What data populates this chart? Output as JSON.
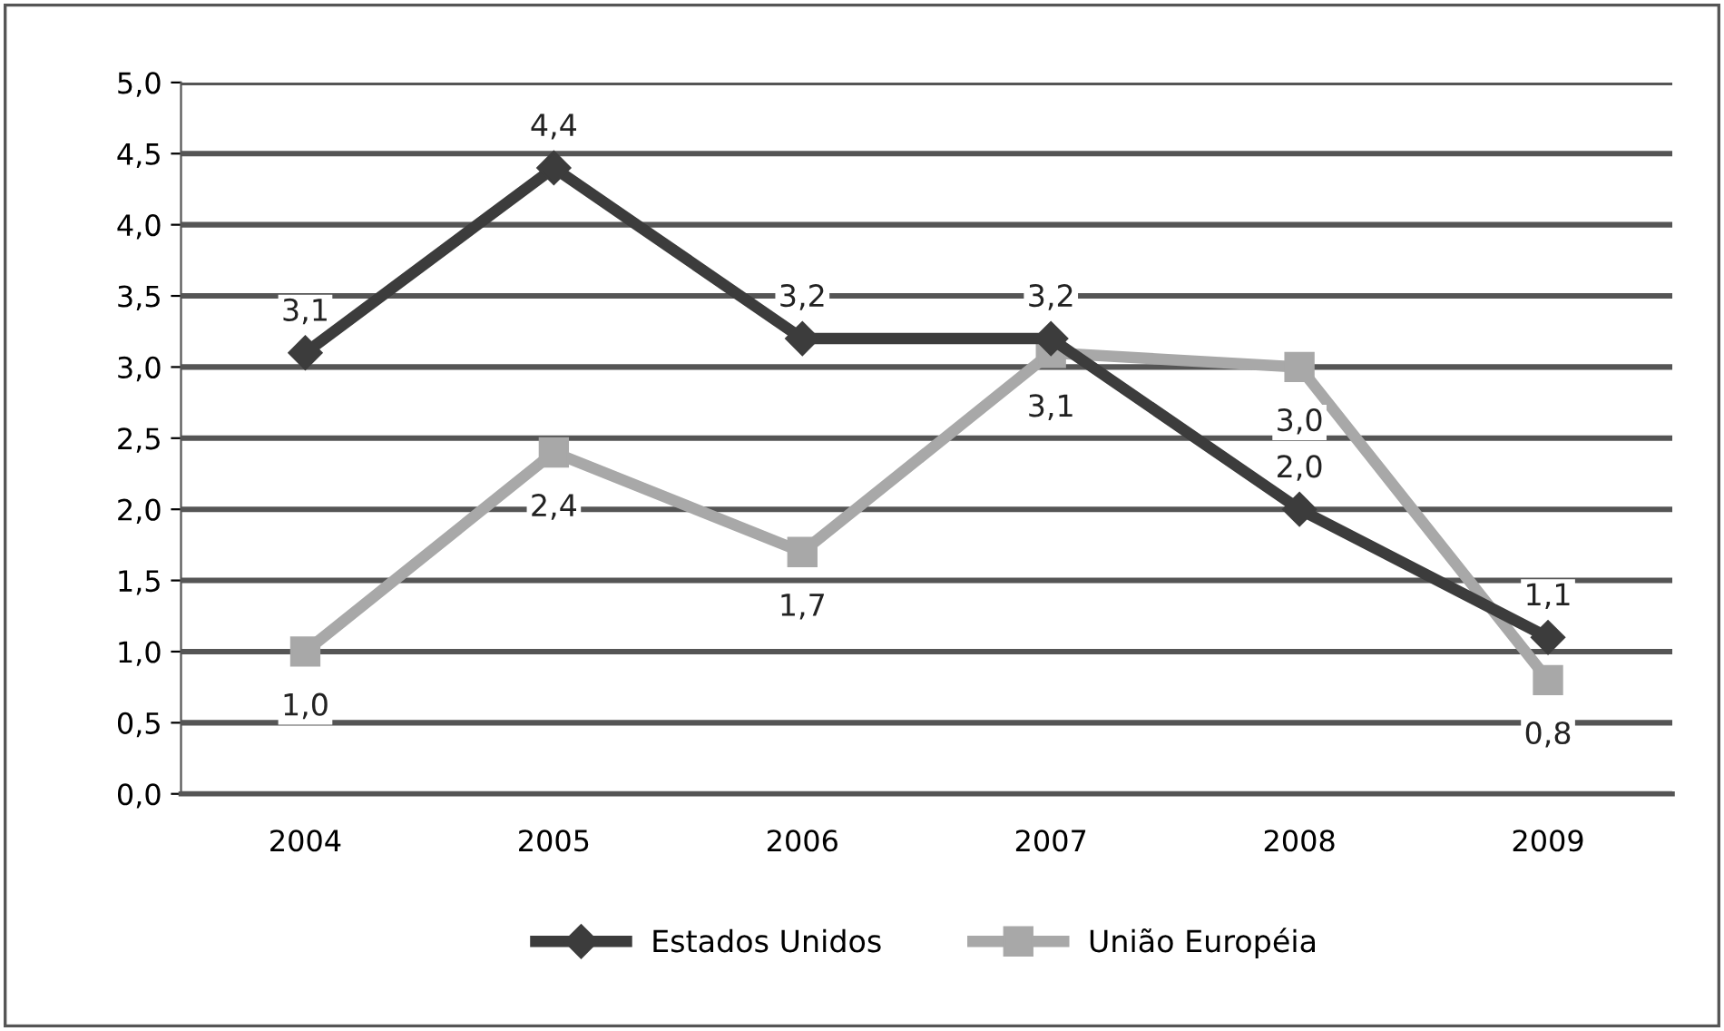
{
  "chart_data": {
    "type": "line",
    "categories": [
      "2004",
      "2005",
      "2006",
      "2007",
      "2008",
      "2009"
    ],
    "series": [
      {
        "name": "Estados Unidos",
        "color": "#3c3c3c",
        "marker": "diamond",
        "values": [
          3.1,
          4.4,
          3.2,
          3.2,
          2.0,
          1.1
        ],
        "value_labels": [
          "3,1",
          "4,4",
          "3,2",
          "3,2",
          "2,0",
          "1,1"
        ]
      },
      {
        "name": "União Européia",
        "color": "#a8a8a8",
        "marker": "square",
        "values": [
          1.0,
          2.4,
          1.7,
          3.1,
          3.0,
          0.8
        ],
        "value_labels": [
          "1,0",
          "2,4",
          "1,7",
          "3,1",
          "3,0",
          "0,8"
        ]
      }
    ],
    "ylim": [
      0,
      5
    ],
    "yticks": [
      {
        "value": 0,
        "label": "0,0"
      },
      {
        "value": 0.5,
        "label": "0,5"
      },
      {
        "value": 1,
        "label": "1,0"
      },
      {
        "value": 1.5,
        "label": "1,5"
      },
      {
        "value": 2,
        "label": "2,0"
      },
      {
        "value": 2.5,
        "label": "2,5"
      },
      {
        "value": 3,
        "label": "3,0"
      },
      {
        "value": 3.5,
        "label": "3,5"
      },
      {
        "value": 4,
        "label": "4,0"
      },
      {
        "value": 4.5,
        "label": "4,5"
      },
      {
        "value": 5,
        "label": "5,0"
      }
    ],
    "grid": "y",
    "legend": "bottom",
    "line_style": "solid"
  }
}
